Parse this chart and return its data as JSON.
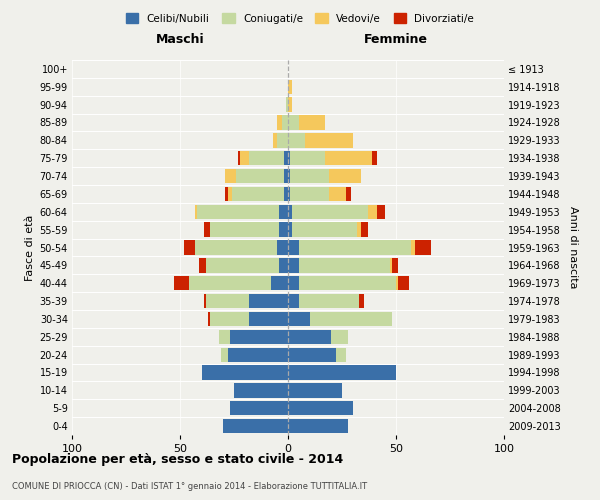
{
  "age_groups": [
    "0-4",
    "5-9",
    "10-14",
    "15-19",
    "20-24",
    "25-29",
    "30-34",
    "35-39",
    "40-44",
    "45-49",
    "50-54",
    "55-59",
    "60-64",
    "65-69",
    "70-74",
    "75-79",
    "80-84",
    "85-89",
    "90-94",
    "95-99",
    "100+"
  ],
  "birth_years": [
    "2009-2013",
    "2004-2008",
    "1999-2003",
    "1994-1998",
    "1989-1993",
    "1984-1988",
    "1979-1983",
    "1974-1978",
    "1969-1973",
    "1964-1968",
    "1959-1963",
    "1954-1958",
    "1949-1953",
    "1944-1948",
    "1939-1943",
    "1934-1938",
    "1929-1933",
    "1924-1928",
    "1919-1923",
    "1914-1918",
    "≤ 1913"
  ],
  "male": {
    "celibi": [
      30,
      27,
      25,
      40,
      28,
      27,
      18,
      18,
      8,
      4,
      5,
      4,
      4,
      2,
      2,
      2,
      0,
      0,
      0,
      0,
      0
    ],
    "coniugati": [
      0,
      0,
      0,
      0,
      3,
      5,
      18,
      20,
      38,
      34,
      38,
      32,
      38,
      24,
      22,
      16,
      5,
      3,
      1,
      0,
      0
    ],
    "vedovi": [
      0,
      0,
      0,
      0,
      0,
      0,
      0,
      0,
      0,
      0,
      0,
      0,
      1,
      2,
      5,
      4,
      2,
      2,
      0,
      0,
      0
    ],
    "divorziati": [
      0,
      0,
      0,
      0,
      0,
      0,
      1,
      1,
      7,
      3,
      5,
      3,
      0,
      1,
      0,
      1,
      0,
      0,
      0,
      0,
      0
    ]
  },
  "female": {
    "nubili": [
      28,
      30,
      25,
      50,
      22,
      20,
      10,
      5,
      5,
      5,
      5,
      2,
      2,
      1,
      1,
      1,
      0,
      0,
      0,
      0,
      0
    ],
    "coniugate": [
      0,
      0,
      0,
      0,
      5,
      8,
      38,
      28,
      45,
      42,
      52,
      30,
      35,
      18,
      18,
      16,
      8,
      5,
      0,
      0,
      0
    ],
    "vedove": [
      0,
      0,
      0,
      0,
      0,
      0,
      0,
      0,
      1,
      1,
      2,
      2,
      4,
      8,
      15,
      22,
      22,
      12,
      2,
      2,
      0
    ],
    "divorziate": [
      0,
      0,
      0,
      0,
      0,
      0,
      0,
      2,
      5,
      3,
      7,
      3,
      4,
      2,
      0,
      2,
      0,
      0,
      0,
      0,
      0
    ]
  },
  "colors": {
    "celibi": "#3a6fa8",
    "coniugati": "#c5d9a0",
    "vedovi": "#f5c85c",
    "divorziati": "#cc2200"
  },
  "title": "Popolazione per età, sesso e stato civile - 2014",
  "subtitle": "COMUNE DI PRIOCCA (CN) - Dati ISTAT 1° gennaio 2014 - Elaborazione TUTTITALIA.IT",
  "ylabel_left": "Fasce di età",
  "ylabel_right": "Anni di nascita",
  "xlabel_left": "Maschi",
  "xlabel_right": "Femmine",
  "xlim": 100,
  "xticks": [
    -100,
    -50,
    0,
    50,
    100
  ],
  "xtick_labels": [
    "100",
    "50",
    "0",
    "50",
    "100"
  ],
  "legend_labels": [
    "Celibi/Nubili",
    "Coniugati/e",
    "Vedovi/e",
    "Divorziati/e"
  ],
  "bg_color": "#f0f0eb"
}
